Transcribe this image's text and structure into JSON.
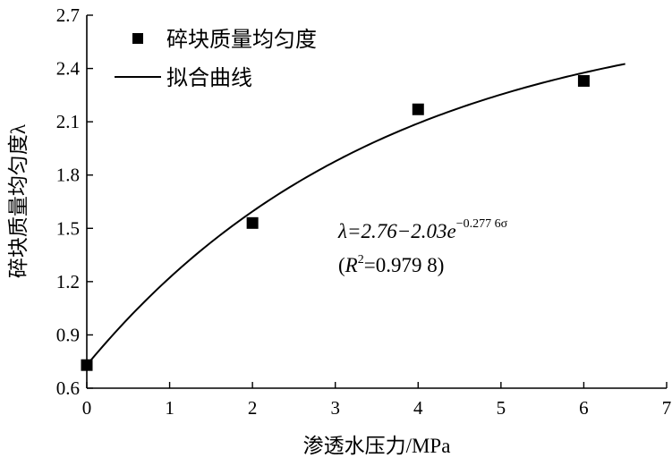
{
  "chart_data": {
    "type": "scatter",
    "xlabel": "渗透水压力/MPa",
    "ylabel": "碎块质量均匀度λ",
    "xlim": [
      0,
      7
    ],
    "ylim": [
      0.6,
      2.7
    ],
    "xticks": [
      "0",
      "1",
      "2",
      "3",
      "4",
      "5",
      "6",
      "7"
    ],
    "yticks": [
      "0.6",
      "0.9",
      "1.2",
      "1.5",
      "1.8",
      "2.1",
      "2.4",
      "2.7"
    ],
    "grid": false,
    "legend_position": "top-left",
    "series": [
      {
        "name": "碎块质量均匀度",
        "kind": "points",
        "marker": "square",
        "x": [
          0,
          2,
          4,
          6
        ],
        "y": [
          0.73,
          1.53,
          2.17,
          2.33
        ]
      },
      {
        "name": "拟合曲线",
        "kind": "line",
        "formula": {
          "a": 2.76,
          "b": 2.03,
          "k": 0.2776
        },
        "x_range": [
          0,
          6.5
        ]
      }
    ],
    "annotation": {
      "equation_main": "λ=2.76−2.03e",
      "equation_exp": "−0.277 6σ",
      "r2_prefix": "(",
      "r2_symbol": "R",
      "r2_sup": "2",
      "r2_value": "=0.979 8)"
    }
  }
}
